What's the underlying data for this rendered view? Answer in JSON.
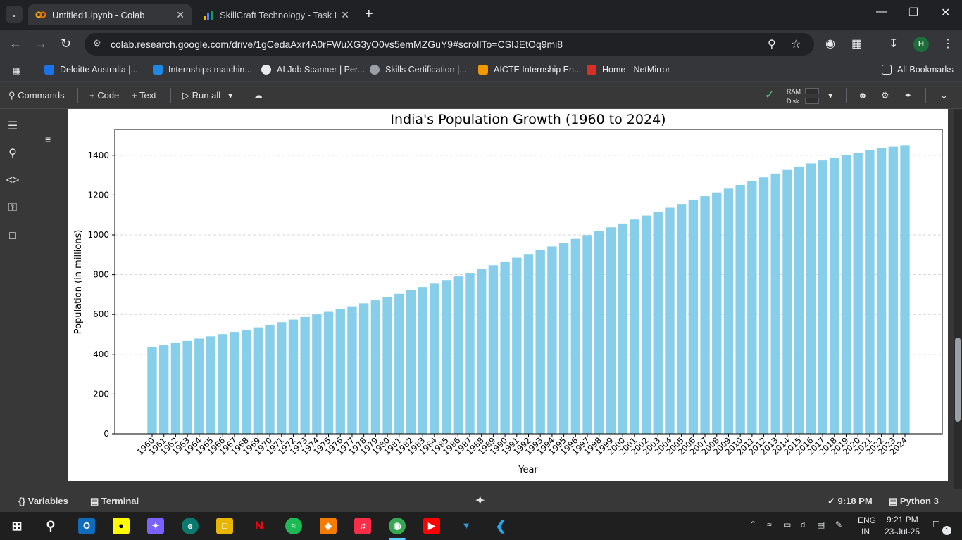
{
  "browser": {
    "tabs": [
      {
        "title": "Untitled1.ipynb - Colab",
        "active": true
      },
      {
        "title": "SkillCraft Technology - Task List",
        "active": false
      }
    ],
    "url": "colab.research.google.com/drive/1gCedaAxr4A0rFWuXG3yO0vs5emMZGuY9#scrollTo=CSIJEtOq9mi8",
    "avatar_initial": "H",
    "bookmarks": [
      "Deloitte Australia |...",
      "Internships matchin...",
      "AI Job Scanner | Per...",
      "Skills Certification |...",
      "AICTE Internship En...",
      "Home - NetMirror"
    ],
    "all_bookmarks": "All Bookmarks"
  },
  "colab": {
    "commands": "Commands",
    "add_code": "+ Code",
    "add_text": "+ Text",
    "run_all": "Run all",
    "ram": "RAM",
    "disk": "Disk",
    "variables": "Variables",
    "terminal": "Terminal",
    "exec_time": "9:18 PM",
    "runtime": "Python 3"
  },
  "taskbar": {
    "lang": "ENG",
    "region": "IN",
    "time": "9:21 PM",
    "date": "23-Jul-25",
    "notifications": "1"
  },
  "colors": {
    "bar": "#87ceeb",
    "grid": "#cccccc"
  },
  "chart_data": {
    "type": "bar",
    "title": "India's Population Growth (1960 to 2024)",
    "xlabel": "Year",
    "ylabel": "Population (in millions)",
    "ylim": [
      0,
      1530
    ],
    "yticks": [
      0,
      200,
      400,
      600,
      800,
      1000,
      1200,
      1400
    ],
    "grid": "y-dashed",
    "categories": [
      "1960",
      "1961",
      "1962",
      "1963",
      "1964",
      "1965",
      "1966",
      "1967",
      "1968",
      "1969",
      "1970",
      "1971",
      "1972",
      "1973",
      "1974",
      "1975",
      "1976",
      "1977",
      "1978",
      "1979",
      "1980",
      "1981",
      "1982",
      "1983",
      "1984",
      "1985",
      "1986",
      "1987",
      "1988",
      "1989",
      "1990",
      "1991",
      "1992",
      "1993",
      "1994",
      "1995",
      "1996",
      "1997",
      "1998",
      "1999",
      "2000",
      "2001",
      "2002",
      "2003",
      "2004",
      "2005",
      "2006",
      "2007",
      "2008",
      "2009",
      "2010",
      "2011",
      "2012",
      "2013",
      "2014",
      "2015",
      "2016",
      "2017",
      "2018",
      "2019",
      "2020",
      "2021",
      "2022",
      "2023",
      "2024"
    ],
    "values": [
      436,
      445,
      456,
      467,
      479,
      490,
      501,
      512,
      523,
      535,
      548,
      561,
      574,
      587,
      600,
      613,
      627,
      641,
      656,
      671,
      687,
      704,
      721,
      738,
      755,
      773,
      791,
      809,
      828,
      847,
      866,
      885,
      904,
      923,
      942,
      961,
      980,
      999,
      1018,
      1038,
      1057,
      1077,
      1097,
      1116,
      1136,
      1155,
      1174,
      1194,
      1213,
      1232,
      1251,
      1270,
      1289,
      1308,
      1326,
      1343,
      1359,
      1374,
      1389,
      1401,
      1413,
      1425,
      1435,
      1443,
      1451
    ]
  }
}
